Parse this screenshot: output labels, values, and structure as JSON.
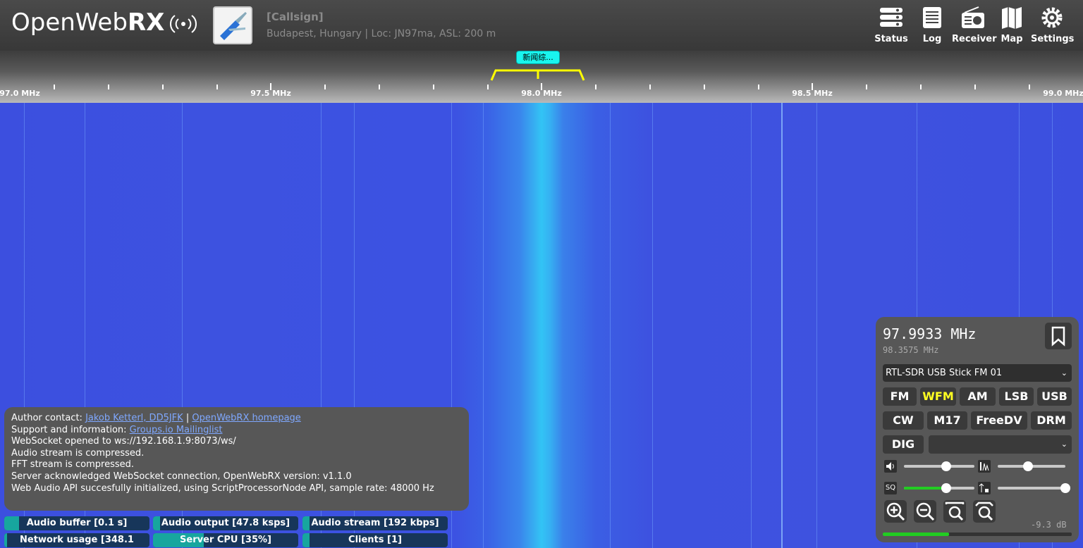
{
  "header": {
    "logo_text": "OpenWeb",
    "logo_bold": "RX",
    "receiver_title": "[Callsign]",
    "receiver_desc": "Budapest, Hungary | Loc: JN97ma, ASL: 200 m",
    "nav": [
      {
        "label": "Status",
        "icon": "status-icon"
      },
      {
        "label": "Log",
        "icon": "log-icon"
      },
      {
        "label": "Receiver",
        "icon": "radio-icon"
      },
      {
        "label": "Map",
        "icon": "map-icon"
      },
      {
        "label": "Settings",
        "icon": "gear-icon"
      }
    ]
  },
  "scale": {
    "labels": [
      "97.0 MHz",
      "97.5 MHz",
      "98.0 MHz",
      "98.5 MHz",
      "99.0 MHz"
    ],
    "bookmark": "新闻综..."
  },
  "log": {
    "author_prefix": "Author contact: ",
    "author_link": "Jakob Ketterl, DD5JFK",
    "sep": " | ",
    "homepage_link": "OpenWebRX homepage",
    "support_prefix": "Support and information: ",
    "support_link": "Groups.io Mailinglist",
    "lines": [
      "WebSocket opened to ws://192.168.1.9:8073/ws/",
      "Audio stream is compressed.",
      "FFT stream is compressed.",
      "Server acknowledged WebSocket connection, OpenWebRX version: v1.1.0",
      "Web Audio API succesfully initialized, using ScriptProcessorNode API, sample rate: 48000 Hz"
    ]
  },
  "status": {
    "audio_buffer": "Audio buffer [0.1 s]",
    "audio_output": "Audio output [47.8 ksps]",
    "audio_stream": "Audio stream [192 kbps]",
    "network_usage": "Network usage [348.1 kbps]",
    "server_cpu": "Server CPU [35%]",
    "clients": "Clients [1]",
    "audio_buffer_level": 0.1,
    "audio_output_level": 0.05,
    "audio_stream_level": 0.05,
    "network_usage_level": 0.02,
    "server_cpu_level": 0.35,
    "clients_level": 0.05
  },
  "receiver": {
    "frequency": "97.9933 MHz",
    "frequency_secondary": "98.3575 MHz",
    "profile": "RTL-SDR USB Stick FM 01",
    "modes": [
      "FM",
      "WFM",
      "AM",
      "LSB",
      "USB",
      "CW",
      "M17",
      "FreeDV",
      "DRM",
      "DIG"
    ],
    "active_mode": "WFM",
    "volume_icon": "speaker-icon",
    "squelch_label": "SQ",
    "db_readout": "-9.3 dB",
    "volume_level": 0.6,
    "nr_level": 0.45,
    "squelch_level": 0.6,
    "gain_level": 1.0,
    "meter_level": 0.35
  },
  "colors": {
    "accent": "#ffff22",
    "panel": "#575757",
    "waterfall": "#3f54e0"
  }
}
